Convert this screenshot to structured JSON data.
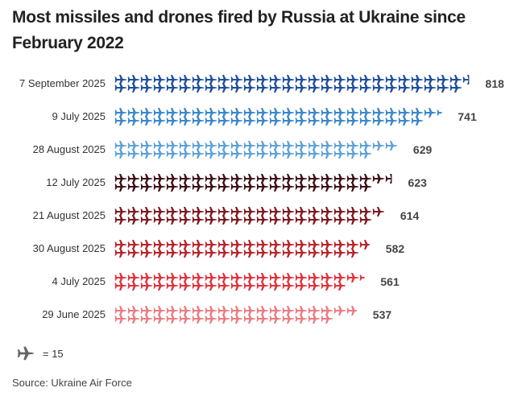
{
  "title": "Most missiles and drones fired by Russia at Ukraine since February 2022",
  "legend": {
    "icon": "plane-icon",
    "text": "= 15"
  },
  "source": "Source: Ukraine Air Force",
  "chart_data": {
    "type": "bar",
    "orientation": "horizontal pictogram",
    "unit_per_icon": 15,
    "categories": [
      "7 September 2025",
      "9 July 2025",
      "28 August 2025",
      "12 July 2025",
      "21 August 2025",
      "30 August 2025",
      "4 July 2025",
      "29 June 2025"
    ],
    "values": [
      818,
      741,
      629,
      623,
      614,
      582,
      561,
      537
    ],
    "colors": [
      "#1f4f9c",
      "#3a87c9",
      "#5ca2d6",
      "#3e1016",
      "#7c1a22",
      "#b7242c",
      "#e0323c",
      "#ea7b82"
    ],
    "grid": false
  }
}
